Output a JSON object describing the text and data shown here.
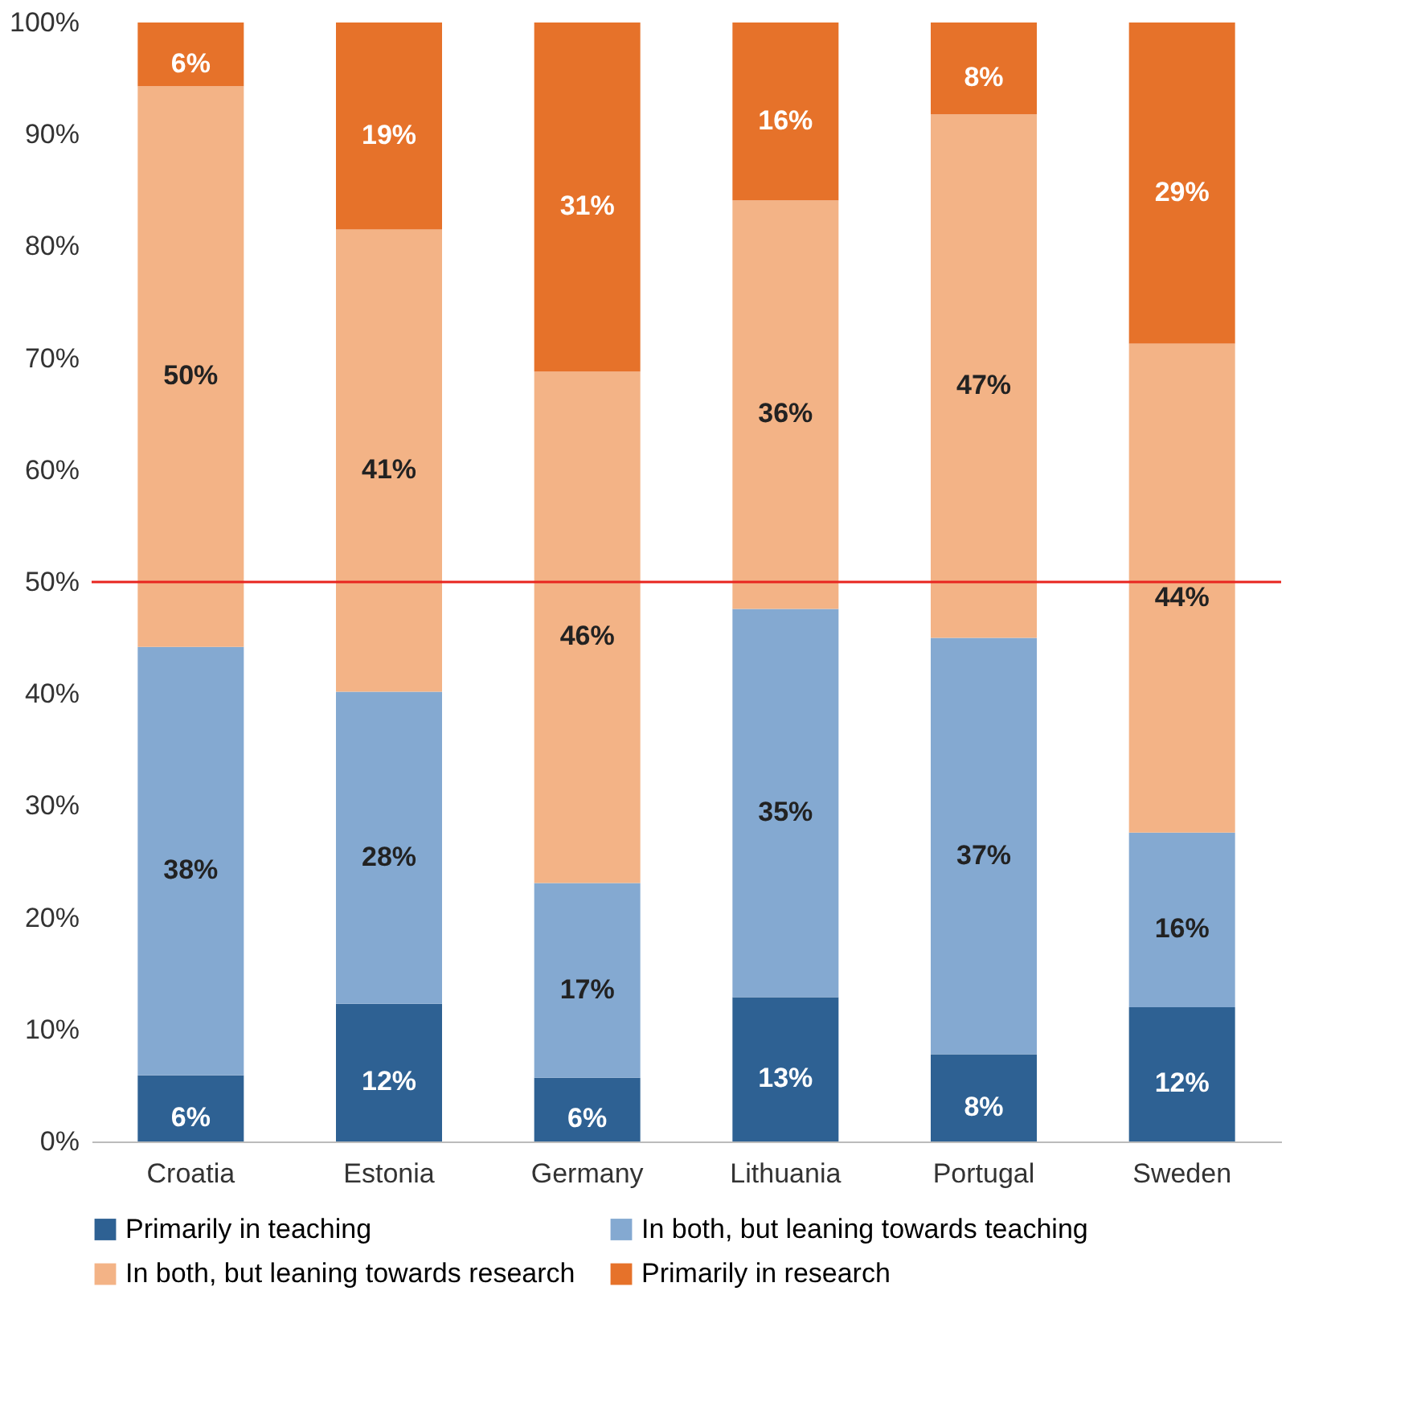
{
  "chart_data": {
    "type": "bar",
    "stacked": true,
    "categories": [
      "Croatia",
      "Estonia",
      "Germany",
      "Lithuania",
      "Portugal",
      "Sweden"
    ],
    "series": [
      {
        "name": "Primarily in teaching",
        "color": "#2e6193",
        "values": [
          5.9,
          12.3,
          5.7,
          12.9,
          7.8,
          12.0
        ],
        "value_labels": [
          "6%",
          "12%",
          "6%",
          "13%",
          "8%",
          "12%"
        ]
      },
      {
        "name": "In both, but leaning towards teaching",
        "color": "#84a9d1",
        "values": [
          38.3,
          27.9,
          17.4,
          34.7,
          37.2,
          15.6
        ],
        "value_labels": [
          "38%",
          "28%",
          "17%",
          "35%",
          "37%",
          "16%"
        ]
      },
      {
        "name": "In both, but leaning towards research",
        "color": "#f3b386",
        "values": [
          50.1,
          41.3,
          45.7,
          36.5,
          46.8,
          43.7
        ],
        "value_labels": [
          "50%",
          "41%",
          "46%",
          "36%",
          "47%",
          "44%"
        ]
      },
      {
        "name": "Primarily in research",
        "color": "#e6722a",
        "values": [
          5.7,
          18.5,
          31.2,
          15.9,
          8.2,
          28.7
        ],
        "value_labels": [
          "6%",
          "19%",
          "31%",
          "16%",
          "8%",
          "29%"
        ]
      }
    ],
    "ylim": [
      0,
      100
    ],
    "yticks": [
      {
        "value": 0,
        "label": "0%"
      },
      {
        "value": 10,
        "label": "10%"
      },
      {
        "value": 20,
        "label": "20%"
      },
      {
        "value": 30,
        "label": "30%"
      },
      {
        "value": 40,
        "label": "40%"
      },
      {
        "value": 50,
        "label": "50%"
      },
      {
        "value": 60,
        "label": "60%"
      },
      {
        "value": 70,
        "label": "70%"
      },
      {
        "value": 80,
        "label": "80%"
      },
      {
        "value": 90,
        "label": "90%"
      },
      {
        "value": 100,
        "label": "100%"
      }
    ],
    "ref_lines": [
      {
        "axis": "y",
        "value": 50,
        "color": "#e8251f"
      }
    ],
    "grid": false,
    "legend": "bottom"
  }
}
